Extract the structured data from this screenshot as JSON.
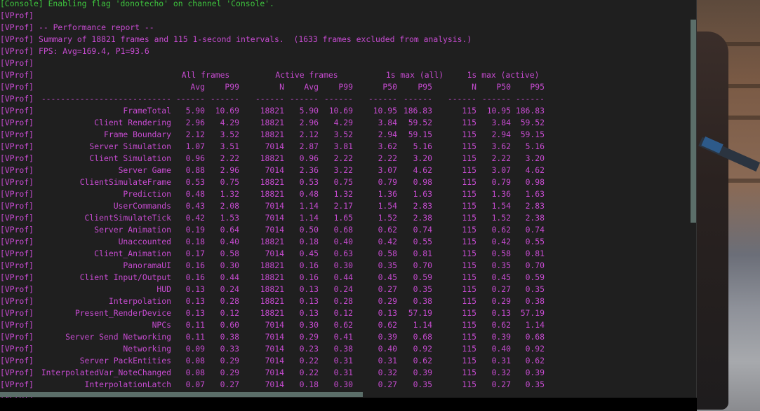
{
  "console_line": "[Console] Enabling flag 'donotecho' on channel 'Console'.",
  "prefix": "[VProf]",
  "intro_lines": [
    "",
    "-- Performance report --",
    "Summary of 18821 frames and 115 1-second intervals.  (1633 frames excluded from analysis.)",
    "FPS: Avg=169.4, P1=93.6",
    ""
  ],
  "group_headers": [
    "All frames",
    "Active frames",
    "1s max (all)",
    "1s max (active)"
  ],
  "column_headers": [
    "Avg",
    "P99",
    "N",
    "Avg",
    "P99",
    "P50",
    "P95",
    "N",
    "P50",
    "P95"
  ],
  "separator": [
    "---------------------------",
    "------",
    "------",
    "------",
    "------",
    "------",
    "------",
    "------",
    "------",
    "------",
    "------"
  ],
  "rows": [
    [
      "FrameTotal",
      "5.90",
      "10.69",
      "18821",
      "5.90",
      "10.69",
      "10.95",
      "186.83",
      "115",
      "10.95",
      "186.83"
    ],
    [
      "Client Rendering",
      "2.96",
      "4.29",
      "18821",
      "2.96",
      "4.29",
      "3.84",
      "59.52",
      "115",
      "3.84",
      "59.52"
    ],
    [
      "Frame Boundary",
      "2.12",
      "3.52",
      "18821",
      "2.12",
      "3.52",
      "2.94",
      "59.15",
      "115",
      "2.94",
      "59.15"
    ],
    [
      "Server Simulation",
      "1.07",
      "3.51",
      "7014",
      "2.87",
      "3.81",
      "3.62",
      "5.16",
      "115",
      "3.62",
      "5.16"
    ],
    [
      "Client Simulation",
      "0.96",
      "2.22",
      "18821",
      "0.96",
      "2.22",
      "2.22",
      "3.20",
      "115",
      "2.22",
      "3.20"
    ],
    [
      "Server Game",
      "0.88",
      "2.96",
      "7014",
      "2.36",
      "3.22",
      "3.07",
      "4.62",
      "115",
      "3.07",
      "4.62"
    ],
    [
      "ClientSimulateFrame",
      "0.53",
      "0.75",
      "18821",
      "0.53",
      "0.75",
      "0.79",
      "0.98",
      "115",
      "0.79",
      "0.98"
    ],
    [
      "Prediction",
      "0.48",
      "1.32",
      "18821",
      "0.48",
      "1.32",
      "1.36",
      "1.63",
      "115",
      "1.36",
      "1.63"
    ],
    [
      "UserCommands",
      "0.43",
      "2.08",
      "7014",
      "1.14",
      "2.17",
      "1.54",
      "2.83",
      "115",
      "1.54",
      "2.83"
    ],
    [
      "ClientSimulateTick",
      "0.42",
      "1.53",
      "7014",
      "1.14",
      "1.65",
      "1.52",
      "2.38",
      "115",
      "1.52",
      "2.38"
    ],
    [
      "Server Animation",
      "0.19",
      "0.64",
      "7014",
      "0.50",
      "0.68",
      "0.62",
      "0.74",
      "115",
      "0.62",
      "0.74"
    ],
    [
      "Unaccounted",
      "0.18",
      "0.40",
      "18821",
      "0.18",
      "0.40",
      "0.42",
      "0.55",
      "115",
      "0.42",
      "0.55"
    ],
    [
      "Client_Animation",
      "0.17",
      "0.58",
      "7014",
      "0.45",
      "0.63",
      "0.58",
      "0.81",
      "115",
      "0.58",
      "0.81"
    ],
    [
      "PanoramaUI",
      "0.16",
      "0.30",
      "18821",
      "0.16",
      "0.30",
      "0.35",
      "0.70",
      "115",
      "0.35",
      "0.70"
    ],
    [
      "Client Input/Output",
      "0.16",
      "0.44",
      "18821",
      "0.16",
      "0.44",
      "0.45",
      "0.59",
      "115",
      "0.45",
      "0.59"
    ],
    [
      "HUD",
      "0.13",
      "0.24",
      "18821",
      "0.13",
      "0.24",
      "0.27",
      "0.35",
      "115",
      "0.27",
      "0.35"
    ],
    [
      "Interpolation",
      "0.13",
      "0.28",
      "18821",
      "0.13",
      "0.28",
      "0.29",
      "0.38",
      "115",
      "0.29",
      "0.38"
    ],
    [
      "Present_RenderDevice",
      "0.13",
      "0.12",
      "18821",
      "0.13",
      "0.12",
      "0.13",
      "57.19",
      "115",
      "0.13",
      "57.19"
    ],
    [
      "NPCs",
      "0.11",
      "0.60",
      "7014",
      "0.30",
      "0.62",
      "0.62",
      "1.14",
      "115",
      "0.62",
      "1.14"
    ],
    [
      "Server Send Networking",
      "0.11",
      "0.38",
      "7014",
      "0.29",
      "0.41",
      "0.39",
      "0.68",
      "115",
      "0.39",
      "0.68"
    ],
    [
      "Networking",
      "0.09",
      "0.33",
      "7014",
      "0.23",
      "0.38",
      "0.40",
      "0.92",
      "115",
      "0.40",
      "0.92"
    ],
    [
      "Server PackEntities",
      "0.08",
      "0.29",
      "7014",
      "0.22",
      "0.31",
      "0.31",
      "0.62",
      "115",
      "0.31",
      "0.62"
    ],
    [
      "InterpolatedVar_NoteChanged",
      "0.08",
      "0.29",
      "7014",
      "0.22",
      "0.31",
      "0.32",
      "0.39",
      "115",
      "0.32",
      "0.39"
    ],
    [
      "InterpolationLatch",
      "0.07",
      "0.27",
      "7014",
      "0.18",
      "0.30",
      "0.27",
      "0.35",
      "115",
      "0.27",
      "0.35"
    ]
  ],
  "colors": {
    "console_text": "#3ec43e",
    "vprof_text": "#c64bd0",
    "background": "#1f1f1f",
    "scrollbar": "#5b6e69"
  }
}
